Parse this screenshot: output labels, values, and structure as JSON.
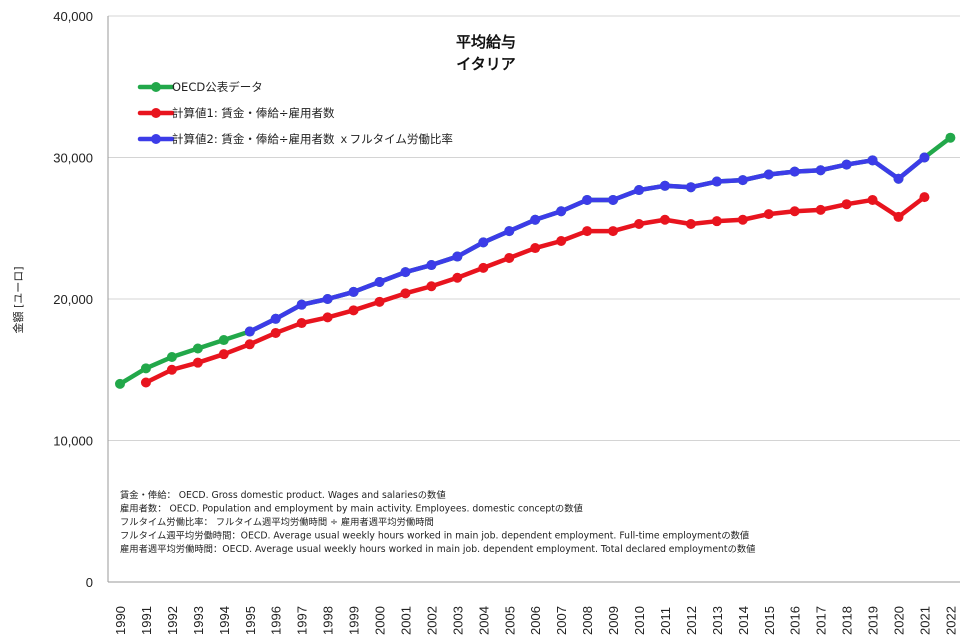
{
  "chart_data": {
    "type": "line",
    "title": "平均給与",
    "subtitle": "イタリア",
    "ylabel": "金額 [ユーロ]",
    "xlabel": "",
    "ylim": [
      0,
      40000
    ],
    "yticks": [
      0,
      10000,
      20000,
      30000,
      40000
    ],
    "ytick_labels": [
      "0",
      "10,000",
      "20,000",
      "30,000",
      "40,000"
    ],
    "grid": "horizontal",
    "legend_position": "top-left",
    "categories": [
      "1990",
      "1991",
      "1992",
      "1993",
      "1994",
      "1995",
      "1996",
      "1997",
      "1998",
      "1999",
      "2000",
      "2001",
      "2002",
      "2003",
      "2004",
      "2005",
      "2006",
      "2007",
      "2008",
      "2009",
      "2010",
      "2011",
      "2012",
      "2013",
      "2014",
      "2015",
      "2016",
      "2017",
      "2018",
      "2019",
      "2020",
      "2021",
      "2022"
    ],
    "series": [
      {
        "name": "OECD公表データ",
        "color": "#22a84a",
        "values": [
          14000,
          15100,
          15900,
          16500,
          17100,
          17700,
          18600,
          19600,
          20000,
          20500,
          21200,
          21900,
          22400,
          23000,
          24000,
          24800,
          25600,
          26200,
          27000,
          27000,
          27700,
          28000,
          27900,
          28300,
          28400,
          28800,
          29000,
          29100,
          29500,
          29800,
          28500,
          30000,
          31400
        ]
      },
      {
        "name": "計算値1: 賃金・俸給÷雇用者数",
        "color": "#e8141e",
        "values": [
          null,
          14100,
          15000,
          15500,
          16100,
          16800,
          17600,
          18300,
          18700,
          19200,
          19800,
          20400,
          20900,
          21500,
          22200,
          22900,
          23600,
          24100,
          24800,
          24800,
          25300,
          25600,
          25300,
          25500,
          25600,
          26000,
          26200,
          26300,
          26700,
          27000,
          25800,
          27200,
          null
        ]
      },
      {
        "name": "計算値2: 賃金・俸給÷雇用者数 ｘフルタイム労働比率",
        "color": "#3c3ce8",
        "values": [
          null,
          null,
          null,
          null,
          null,
          17700,
          18600,
          19600,
          20000,
          20500,
          21200,
          21900,
          22400,
          23000,
          24000,
          24800,
          25600,
          26200,
          27000,
          27000,
          27700,
          28000,
          27900,
          28300,
          28400,
          28800,
          29000,
          29100,
          29500,
          29800,
          28500,
          30000,
          null
        ]
      }
    ],
    "annotations": [
      "賃金・俸給： OECD. Gross domestic product. Wages and salariesの数値",
      "雇用者数： OECD. Population and employment by main activity. Employees. domestic conceptの数値",
      "フルタイム労働比率： フルタイム週平均労働時間 ÷ 雇用者週平均労働時間",
      "フルタイム週平均労働時間：OECD. Average usual weekly  hours worked in main job. dependent employment. Full-time employmentの数値",
      "雇用者週平均労働時間：OECD. Average usual weekly hours worked in main job. dependent employment. Total declared employmentの数値"
    ]
  }
}
